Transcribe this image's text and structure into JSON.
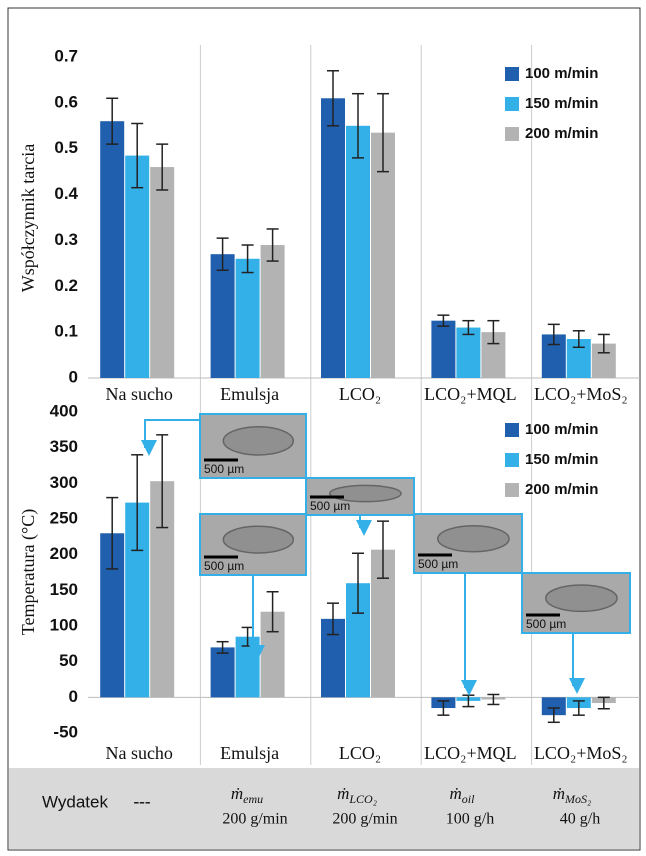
{
  "chart_data": [
    {
      "type": "bar",
      "y_label": "Współczynnik tarcia",
      "categories": [
        "Na sucho",
        "Emulsja",
        "LCO₂",
        "LCO₂+MQL",
        "LCO₂+MoS₂"
      ],
      "series": [
        {
          "name": "100 m/min",
          "color": "#1f5fad",
          "values": [
            0.56,
            0.27,
            0.61,
            0.125,
            0.095
          ],
          "errors": [
            0.05,
            0.035,
            0.06,
            0.012,
            0.022
          ]
        },
        {
          "name": "150 m/min",
          "color": "#33b0e8",
          "values": [
            0.485,
            0.26,
            0.55,
            0.11,
            0.085
          ],
          "errors": [
            0.07,
            0.03,
            0.07,
            0.015,
            0.018
          ]
        },
        {
          "name": "200 m/min",
          "color": "#b3b3b3",
          "values": [
            0.46,
            0.29,
            0.535,
            0.1,
            0.075
          ],
          "errors": [
            0.05,
            0.035,
            0.085,
            0.025,
            0.02
          ]
        }
      ],
      "ylim": [
        0,
        0.7
      ],
      "yticks": [
        0,
        0.1,
        0.2,
        0.3,
        0.4,
        0.5,
        0.6,
        0.7
      ],
      "legend": "upper right"
    },
    {
      "type": "bar",
      "y_label": "Temperatura  (°C)",
      "categories": [
        "Na sucho",
        "Emulsja",
        "LCO₂",
        "LCO₂+MQL",
        "LCO₂+MoS₂"
      ],
      "series": [
        {
          "name": "100 m/min",
          "color": "#1f5fad",
          "values": [
            230,
            70,
            110,
            -15,
            -25
          ],
          "errors": [
            50,
            8,
            22,
            10,
            10
          ]
        },
        {
          "name": "150 m/min",
          "color": "#33b0e8",
          "values": [
            273,
            85,
            160,
            -5,
            -15
          ],
          "errors": [
            67,
            13,
            42,
            8,
            10
          ]
        },
        {
          "name": "200 m/min",
          "color": "#b3b3b3",
          "values": [
            303,
            120,
            207,
            -3,
            -8
          ],
          "errors": [
            65,
            28,
            40,
            7,
            8
          ]
        }
      ],
      "ylim": [
        -50,
        400
      ],
      "yticks": [
        -50,
        0,
        50,
        100,
        150,
        200,
        250,
        300,
        350,
        400
      ],
      "legend": "upper right"
    }
  ],
  "insets": [
    {
      "scale": "500 µm"
    },
    {
      "scale": "500 µm"
    },
    {
      "scale": "500 µm"
    },
    {
      "scale": "500 µm"
    },
    {
      "scale": "500 µm"
    }
  ],
  "table": {
    "label": "Wydatek",
    "cells": [
      {
        "symbol": "---"
      },
      {
        "symbol": "ṁ",
        "sub": "emu",
        "rate": "200 g/min"
      },
      {
        "symbol": "ṁ",
        "sub": "LCO₂",
        "rate": "200 g/min"
      },
      {
        "symbol": "ṁ",
        "sub": "oil",
        "rate": "100 g/h"
      },
      {
        "symbol": "ṁ",
        "sub": "MoS₂",
        "rate": "40 g/h"
      }
    ]
  }
}
